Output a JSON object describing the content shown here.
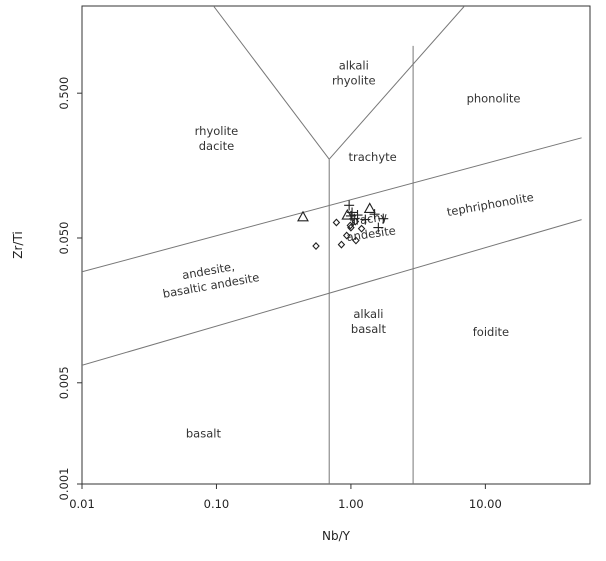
{
  "chart_data": {
    "type": "scatter",
    "title": "",
    "xlabel": "Nb/Y",
    "ylabel": "Zr/Ti",
    "xscale": "log",
    "yscale": "log",
    "xlim": [
      0.01,
      60
    ],
    "ylim": [
      0.001,
      2.0
    ],
    "grid": false,
    "legend": "none",
    "x_ticks": [
      {
        "value": 0.01,
        "label": "0.01"
      },
      {
        "value": 0.1,
        "label": "0.10"
      },
      {
        "value": 1,
        "label": "1.00"
      },
      {
        "value": 10,
        "label": "10.00"
      }
    ],
    "y_ticks": [
      {
        "value": 0.001,
        "label": "0.001"
      },
      {
        "value": 0.005,
        "label": "0.005"
      },
      {
        "value": 0.05,
        "label": "0.050"
      },
      {
        "value": 0.5,
        "label": "0.500"
      }
    ],
    "boundaries": [
      {
        "name": "alkali-rhyolite-left",
        "points": [
          [
            0.095,
            2.0
          ],
          [
            0.69,
            0.175
          ]
        ]
      },
      {
        "name": "alkali-rhyolite-right",
        "points": [
          [
            0.69,
            0.175
          ],
          [
            7.0,
            2.0
          ]
        ]
      },
      {
        "name": "subalkaline-alkaline-divide",
        "points": [
          [
            0.69,
            0.175
          ],
          [
            0.69,
            0.001
          ]
        ]
      },
      {
        "name": "foidite-divide",
        "points": [
          [
            2.9,
            1.06
          ],
          [
            2.9,
            0.001
          ]
        ]
      },
      {
        "name": "upper-band",
        "points": [
          [
            0.01,
            0.0292
          ],
          [
            52,
            0.246
          ]
        ]
      },
      {
        "name": "lower-band",
        "points": [
          [
            0.01,
            0.0066
          ],
          [
            52,
            0.067
          ]
        ]
      }
    ],
    "field_labels": [
      {
        "lines": [
          "alkali",
          "rhyolite"
        ],
        "x": 1.05,
        "y": 0.65,
        "rotate": 0
      },
      {
        "lines": [
          "phonolite"
        ],
        "x": 11.5,
        "y": 0.43,
        "rotate": 0
      },
      {
        "lines": [
          "rhyolite",
          "dacite"
        ],
        "x": 0.1,
        "y": 0.23,
        "rotate": 0
      },
      {
        "lines": [
          "trachyte"
        ],
        "x": 1.45,
        "y": 0.17,
        "rotate": 0
      },
      {
        "lines": [
          "tephriphonolite"
        ],
        "x": 11.0,
        "y": 0.08,
        "rotate": -10
      },
      {
        "lines": [
          "trachy",
          "andesite"
        ],
        "x": 1.4,
        "y": 0.057,
        "rotate": -8
      },
      {
        "lines": [
          "andesite,",
          "basaltic andesite"
        ],
        "x": 0.09,
        "y": 0.025,
        "rotate": -10
      },
      {
        "lines": [
          "alkali",
          "basalt"
        ],
        "x": 1.35,
        "y": 0.0125,
        "rotate": 0
      },
      {
        "lines": [
          "foidite"
        ],
        "x": 11.0,
        "y": 0.0105,
        "rotate": 0
      },
      {
        "lines": [
          "basalt"
        ],
        "x": 0.08,
        "y": 0.0021,
        "rotate": 0
      }
    ],
    "series": [
      {
        "marker": "plus",
        "points": [
          [
            0.97,
            0.084
          ],
          [
            1.0,
            0.071
          ],
          [
            1.06,
            0.068
          ],
          [
            1.12,
            0.072
          ],
          [
            1.28,
            0.067
          ],
          [
            1.5,
            0.073
          ],
          [
            1.74,
            0.068
          ],
          [
            1.6,
            0.059
          ],
          [
            1.02,
            0.075
          ]
        ]
      },
      {
        "marker": "triangle",
        "points": [
          [
            0.44,
            0.07
          ],
          [
            0.94,
            0.072
          ],
          [
            1.38,
            0.08
          ]
        ]
      },
      {
        "marker": "diamond",
        "points": [
          [
            0.55,
            0.044
          ],
          [
            0.78,
            0.064
          ],
          [
            0.85,
            0.045
          ],
          [
            0.93,
            0.052
          ],
          [
            0.99,
            0.061
          ],
          [
            1.08,
            0.065
          ],
          [
            1.09,
            0.048
          ],
          [
            1.2,
            0.058
          ],
          [
            1.0,
            0.059
          ]
        ]
      }
    ]
  }
}
